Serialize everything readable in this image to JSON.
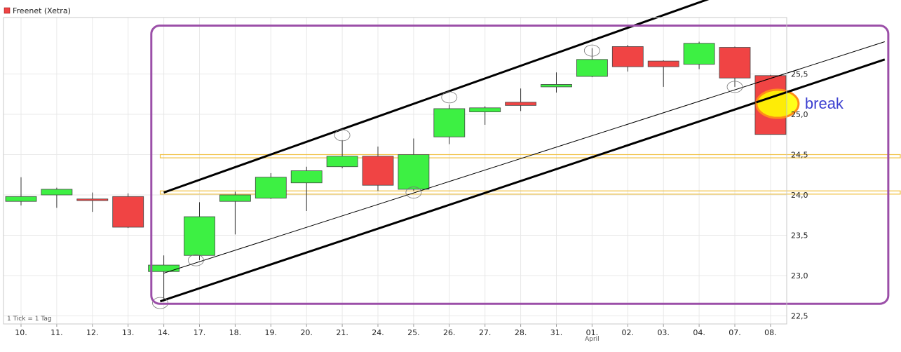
{
  "chart_data": {
    "type": "candlestick",
    "title": "Freenet (Xetra)",
    "note": "1 Tick = 1 Tag",
    "month_label": "April",
    "annotation": "break",
    "colors": {
      "up": "#3df043",
      "down": "#f04444",
      "channel": "#000000",
      "support": "#f0c040",
      "box": "#9b4fa8",
      "highlight_fill": "#ffff00",
      "highlight_stroke": "#ff8c1a",
      "annotation": "#3b3fd0"
    },
    "ylim": [
      22.4,
      26.2
    ],
    "y_ticks": [
      "22,5",
      "23,0",
      "23,5",
      "24,0",
      "24,5",
      "25,0",
      "25,5"
    ],
    "y_tick_values": [
      22.5,
      23.0,
      23.5,
      24.0,
      24.5,
      25.0,
      25.5
    ],
    "categories": [
      "10.",
      "11.",
      "12.",
      "13.",
      "14.",
      "17.",
      "18.",
      "19.",
      "20.",
      "21.",
      "24.",
      "25.",
      "26.",
      "27.",
      "28.",
      "31.",
      "01.",
      "02.",
      "03.",
      "04.",
      "07.",
      "08."
    ],
    "candles": [
      {
        "open": 23.92,
        "close": 23.98,
        "high": 24.22,
        "low": 23.87
      },
      {
        "open": 24.0,
        "close": 24.07,
        "high": 24.09,
        "low": 23.84
      },
      {
        "open": 23.95,
        "close": 23.93,
        "high": 24.03,
        "low": 23.79
      },
      {
        "open": 23.98,
        "close": 23.6,
        "high": 24.02,
        "low": 23.59
      },
      {
        "open": 23.05,
        "close": 23.13,
        "high": 23.25,
        "low": 22.68
      },
      {
        "open": 23.25,
        "close": 23.73,
        "high": 23.91,
        "low": 23.19
      },
      {
        "open": 23.92,
        "close": 24.0,
        "high": 24.04,
        "low": 23.51
      },
      {
        "open": 23.96,
        "close": 24.22,
        "high": 24.27,
        "low": 23.95
      },
      {
        "open": 24.15,
        "close": 24.3,
        "high": 24.35,
        "low": 23.8
      },
      {
        "open": 24.35,
        "close": 24.48,
        "high": 24.68,
        "low": 24.33
      },
      {
        "open": 24.48,
        "close": 24.12,
        "high": 24.6,
        "low": 24.05
      },
      {
        "open": 24.07,
        "close": 24.5,
        "high": 24.7,
        "low": 24.05
      },
      {
        "open": 24.72,
        "close": 25.07,
        "high": 25.12,
        "low": 24.63
      },
      {
        "open": 25.03,
        "close": 25.08,
        "high": 25.1,
        "low": 24.87
      },
      {
        "open": 25.15,
        "close": 25.11,
        "high": 25.32,
        "low": 25.04
      },
      {
        "open": 25.34,
        "close": 25.37,
        "high": 25.52,
        "low": 25.27
      },
      {
        "open": 25.47,
        "close": 25.68,
        "high": 25.82,
        "low": 25.46
      },
      {
        "open": 25.84,
        "close": 25.59,
        "high": 25.86,
        "low": 25.53
      },
      {
        "open": 25.66,
        "close": 25.59,
        "high": 25.67,
        "low": 25.34
      },
      {
        "open": 25.62,
        "close": 25.88,
        "high": 25.9,
        "low": 25.56
      },
      {
        "open": 25.83,
        "close": 25.45,
        "high": 25.84,
        "low": 25.34
      },
      {
        "open": 25.48,
        "close": 24.75,
        "high": 25.49,
        "low": 24.75
      }
    ],
    "channel_lines": [
      {
        "width": 3,
        "from": {
          "index": 4,
          "value": 24.03
        },
        "to": {
          "index": 21.5,
          "value": 26.78
        }
      },
      {
        "width": 1,
        "from": {
          "index": 4,
          "value": 23.03
        },
        "to": {
          "index": 24.2,
          "value": 25.9
        }
      },
      {
        "width": 3,
        "from": {
          "index": 3.9,
          "value": 22.68
        },
        "to": {
          "index": 24.2,
          "value": 25.68
        }
      }
    ],
    "support_bands": [
      {
        "low": 24.46,
        "high": 24.5
      },
      {
        "low": 24.01,
        "high": 24.05
      }
    ],
    "touch_points": [
      {
        "index": 3.9,
        "value": 22.66
      },
      {
        "index": 4.9,
        "value": 23.19
      },
      {
        "index": 9.0,
        "value": 24.74
      },
      {
        "index": 11.0,
        "value": 24.03
      },
      {
        "index": 12.0,
        "value": 25.21
      },
      {
        "index": 16.0,
        "value": 25.79
      },
      {
        "index": 20.0,
        "value": 25.34
      }
    ],
    "highlight": {
      "index": 21.0,
      "value": 25.13
    },
    "box_region": {
      "from_index": 3.65,
      "to_index": 24.3,
      "top": 26.1,
      "bottom": 22.65
    }
  }
}
